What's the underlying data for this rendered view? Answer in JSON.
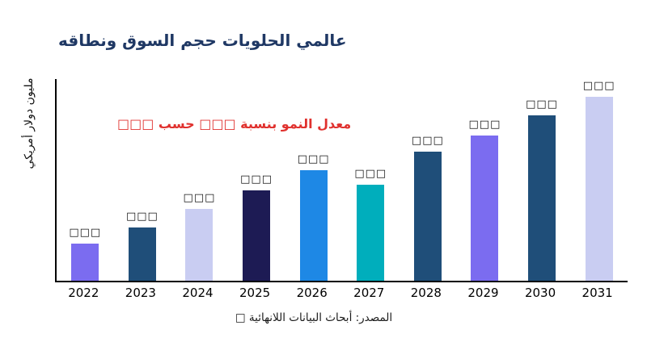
{
  "chart": {
    "title": "عالمي الحلويات حجم السوق ونطاقه",
    "ylabel": "مليون دولار أمريكي",
    "annotation": "معدل النمو بنسبة □□□ حسب □□□",
    "source": "المصدر: أبحاث البيانات اللانهائية □",
    "title_color": "#1f3864",
    "annotation_color": "#e0312e",
    "axis_color": "#000000"
  },
  "chart_data": {
    "type": "bar",
    "title": "عالمي الحلويات حجم السوق ونطاقه",
    "xlabel": "",
    "ylabel": "مليون دولار أمريكي",
    "categories": [
      "2022",
      "2023",
      "2024",
      "2025",
      "2026",
      "2027",
      "2028",
      "2029",
      "2030",
      "2031"
    ],
    "values": [
      20,
      29,
      39,
      49,
      60,
      52,
      70,
      79,
      90,
      100
    ],
    "values_note": "Numeric data labels are redacted placeholder boxes (□□□); values are relative bar heights as % of the tallest (2031) bar.",
    "bar_labels": [
      "□□□",
      "□□□",
      "□□□",
      "□□□",
      "□□□",
      "□□□",
      "□□□",
      "□□□",
      "□□□",
      "□□□"
    ],
    "bar_colors": [
      "#7b6cf0",
      "#1f4e79",
      "#c9cdf2",
      "#1d1b54",
      "#1e88e5",
      "#00aebc",
      "#1f4e79",
      "#7b6cf0",
      "#1f4e79",
      "#c9cdf2"
    ],
    "ylim": [
      0,
      100
    ],
    "grid": false,
    "legend": false,
    "annotation": "معدل النمو بنسبة □□□ حسب □□□",
    "source": "المصدر: أبحاث البيانات اللانهائية □"
  }
}
